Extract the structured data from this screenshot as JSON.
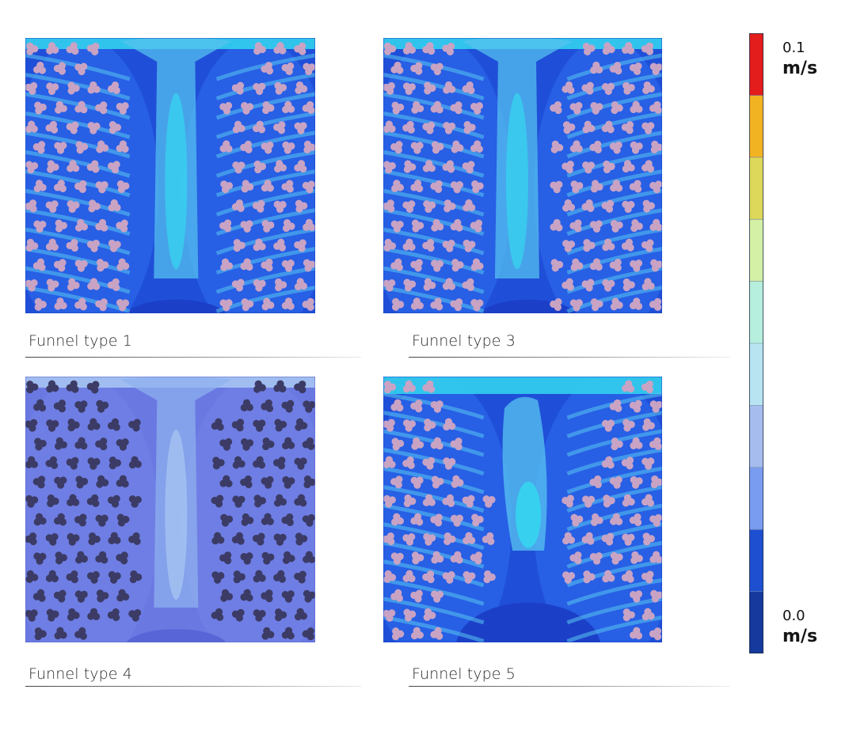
{
  "panels": [
    {
      "caption": "Funnel type 1",
      "variant": "type1"
    },
    {
      "caption": "Funnel type 3",
      "variant": "type3"
    },
    {
      "caption": "Funnel type 4",
      "variant": "type4"
    },
    {
      "caption": "Funnel type 5",
      "variant": "type5"
    }
  ],
  "legend": {
    "max_value": "0.1",
    "max_unit": "m/s",
    "min_value": "0.0",
    "min_unit": "m/s",
    "levels": [
      "#15399c",
      "#1e4fd1",
      "#7a9cf0",
      "#a7bcee",
      "#b8e4f2",
      "#b6efdd",
      "#d4f0a6",
      "#ddd85a",
      "#f2b323",
      "#e31c1c"
    ]
  },
  "colors": {
    "field_dark": "#1f4fd8",
    "field_mid": "#2d6ef0",
    "field_light": "#58c4f0",
    "field_cyan": "#34d7f0",
    "fiber_fill": "#c9a3c4",
    "type4_field": "#6a78e2",
    "type4_fiber": "#3b3b66"
  }
}
